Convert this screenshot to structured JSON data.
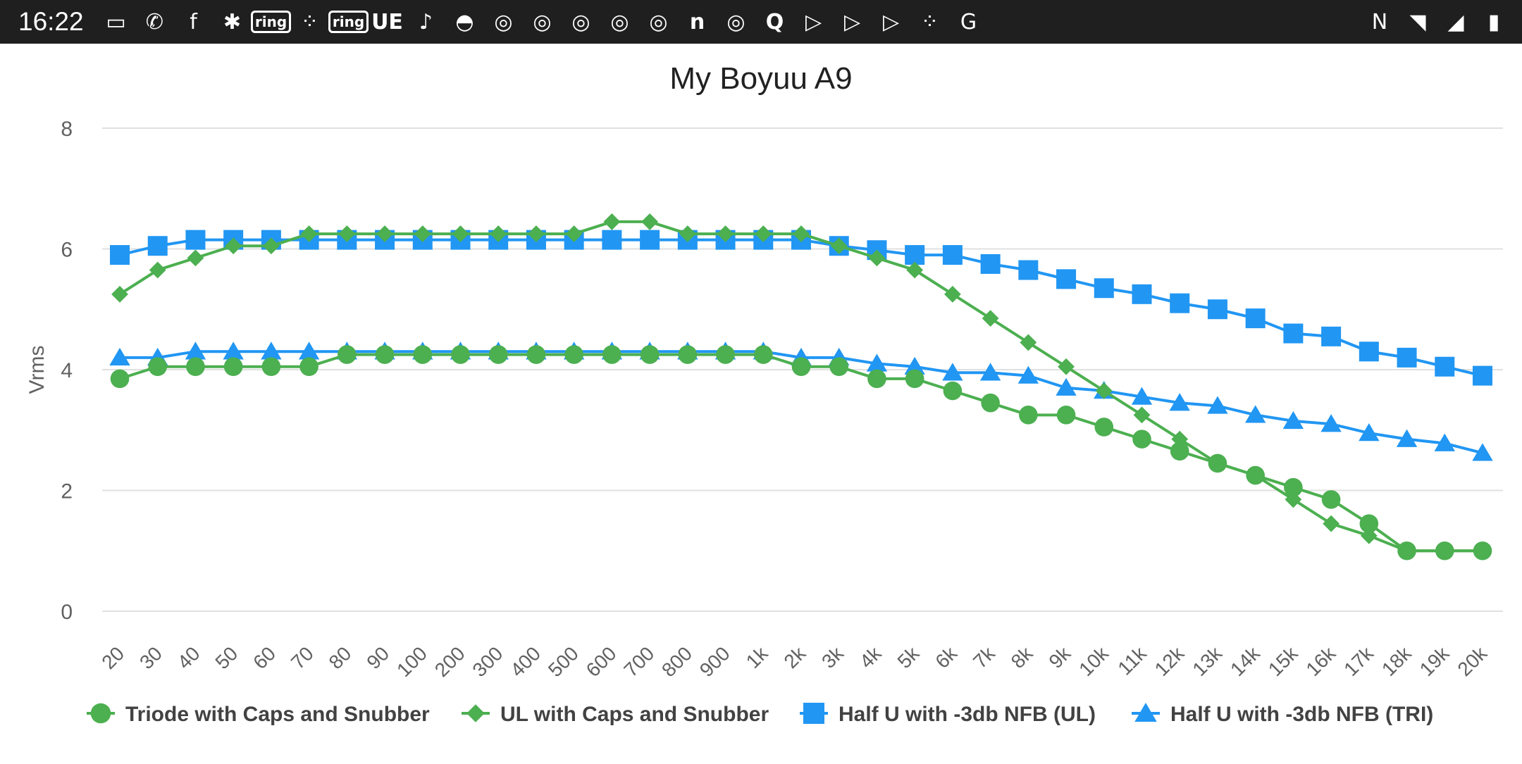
{
  "status_bar": {
    "time": "16:22",
    "left_icons": [
      {
        "name": "cast-icon",
        "glyph": "▭"
      },
      {
        "name": "whatsapp-icon",
        "glyph": "✆"
      },
      {
        "name": "facebook-icon",
        "glyph": "f"
      },
      {
        "name": "network-icon",
        "glyph": "✱"
      },
      {
        "name": "ring-icon",
        "glyph": "ring",
        "boxed": true
      },
      {
        "name": "fitbit-icon",
        "glyph": "⁘"
      },
      {
        "name": "ring-icon-2",
        "glyph": "ring",
        "boxed": true
      },
      {
        "name": "ue-icon",
        "glyph": "UE",
        "bold": true
      },
      {
        "name": "tiktok-icon",
        "glyph": "♪"
      },
      {
        "name": "reddit-icon",
        "glyph": "◓"
      },
      {
        "name": "chrome-icon",
        "glyph": "◎"
      },
      {
        "name": "chrome-icon-2",
        "glyph": "◎"
      },
      {
        "name": "chrome-icon-3",
        "glyph": "◎"
      },
      {
        "name": "chrome-icon-4",
        "glyph": "◎"
      },
      {
        "name": "chrome-icon-5",
        "glyph": "◎"
      },
      {
        "name": "n-app-icon",
        "glyph": "n",
        "bold": true
      },
      {
        "name": "chrome-icon-6",
        "glyph": "◎"
      },
      {
        "name": "quora-icon",
        "glyph": "Q",
        "bold": true
      },
      {
        "name": "play-games-icon",
        "glyph": "▷"
      },
      {
        "name": "play-games-icon-2",
        "glyph": "▷"
      },
      {
        "name": "play-games-icon-3",
        "glyph": "▷"
      },
      {
        "name": "fitbit-icon-2",
        "glyph": "⁘"
      },
      {
        "name": "translate-icon",
        "glyph": "G"
      }
    ],
    "right_icons": [
      {
        "name": "nfc-icon",
        "glyph": "N"
      },
      {
        "name": "wifi-icon",
        "glyph": "◥"
      },
      {
        "name": "signal-icon",
        "glyph": "◢"
      },
      {
        "name": "battery-icon",
        "glyph": "▮"
      }
    ]
  },
  "colors": {
    "green": "#4caf50",
    "blue": "#2196f3",
    "grid": "#e0e0e0",
    "axis_text": "#616161"
  },
  "chart_data": {
    "type": "line",
    "title": "My Boyuu A9",
    "ylabel": "Vrms",
    "xlabel": "",
    "ylim": [
      0,
      8
    ],
    "yticks": [
      "0",
      "2",
      "4",
      "6",
      "8"
    ],
    "grid": true,
    "legend_position": "bottom",
    "categories": [
      "20",
      "30",
      "40",
      "50",
      "60",
      "70",
      "80",
      "90",
      "100",
      "200",
      "300",
      "400",
      "500",
      "600",
      "700",
      "800",
      "900",
      "1k",
      "2k",
      "3k",
      "4k",
      "5k",
      "6k",
      "7k",
      "8k",
      "9k",
      "10k",
      "11k",
      "12k",
      "13k",
      "14k",
      "15k",
      "16k",
      "17k",
      "18k",
      "19k",
      "20k"
    ],
    "series": [
      {
        "name": "Triode with Caps and Snubber",
        "color": "#4caf50",
        "marker": "circle",
        "values": [
          3.85,
          4.05,
          4.05,
          4.05,
          4.05,
          4.05,
          4.25,
          4.25,
          4.25,
          4.25,
          4.25,
          4.25,
          4.25,
          4.25,
          4.25,
          4.25,
          4.25,
          4.25,
          4.05,
          4.05,
          3.85,
          3.85,
          3.65,
          3.45,
          3.25,
          3.25,
          3.05,
          2.85,
          2.65,
          2.45,
          2.25,
          2.05,
          1.85,
          1.45,
          1.0,
          1.0,
          1.0
        ]
      },
      {
        "name": "UL with Caps and Snubber",
        "color": "#4caf50",
        "marker": "diamond",
        "values": [
          5.25,
          5.65,
          5.85,
          6.05,
          6.05,
          6.25,
          6.25,
          6.25,
          6.25,
          6.25,
          6.25,
          6.25,
          6.25,
          6.45,
          6.45,
          6.25,
          6.25,
          6.25,
          6.25,
          6.05,
          5.85,
          5.65,
          5.25,
          4.85,
          4.45,
          4.05,
          3.65,
          3.25,
          2.85,
          2.45,
          2.25,
          1.85,
          1.45,
          1.25,
          1.0,
          1.0,
          1.0
        ]
      },
      {
        "name": "Half U with -3db NFB (UL)",
        "color": "#2196f3",
        "marker": "square",
        "values": [
          5.9,
          6.05,
          6.15,
          6.15,
          6.15,
          6.15,
          6.15,
          6.15,
          6.15,
          6.15,
          6.15,
          6.15,
          6.15,
          6.15,
          6.15,
          6.15,
          6.15,
          6.15,
          6.15,
          6.05,
          5.98,
          5.9,
          5.9,
          5.75,
          5.65,
          5.5,
          5.35,
          5.25,
          5.1,
          5.0,
          4.85,
          4.6,
          4.55,
          4.3,
          4.2,
          4.05,
          3.9
        ]
      },
      {
        "name": "Half U with -3db NFB (TRI)",
        "color": "#2196f3",
        "marker": "triangle",
        "values": [
          4.2,
          4.2,
          4.3,
          4.3,
          4.3,
          4.3,
          4.3,
          4.3,
          4.3,
          4.3,
          4.3,
          4.3,
          4.3,
          4.3,
          4.3,
          4.3,
          4.3,
          4.3,
          4.2,
          4.2,
          4.1,
          4.05,
          3.95,
          3.95,
          3.9,
          3.7,
          3.65,
          3.55,
          3.45,
          3.4,
          3.25,
          3.15,
          3.1,
          2.95,
          2.85,
          2.78,
          2.62
        ]
      }
    ]
  }
}
